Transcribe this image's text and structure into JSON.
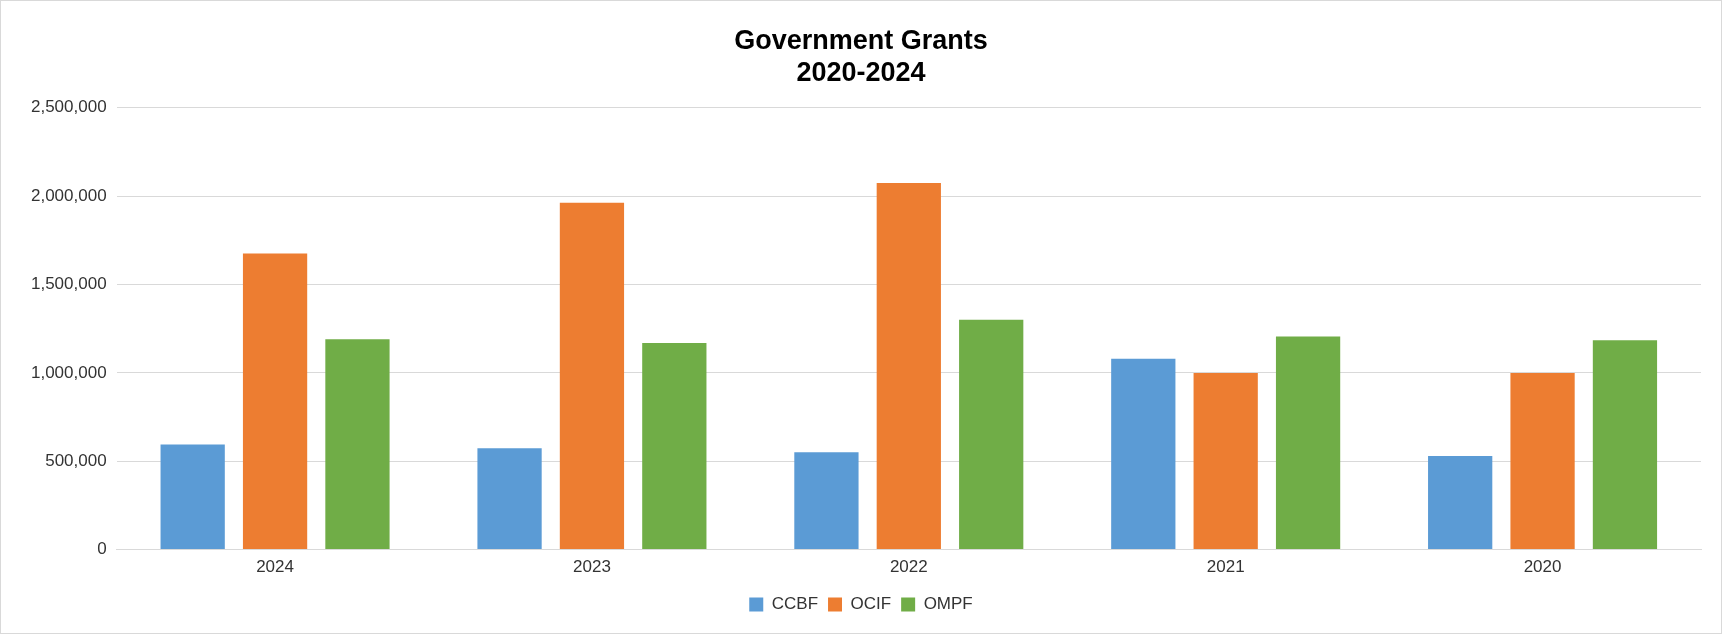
{
  "chart_data": {
    "type": "bar",
    "title": "Government Grants\n2020-2024",
    "categories": [
      "2024",
      "2023",
      "2022",
      "2021",
      "2020"
    ],
    "series": [
      {
        "name": "CCBF",
        "color": "#5b9bd5",
        "values": [
          595000,
          574000,
          551000,
          1080000,
          529000
        ]
      },
      {
        "name": "OCIF",
        "color": "#ed7d31",
        "values": [
          1676000,
          1963000,
          2074000,
          1000000,
          1000000
        ]
      },
      {
        "name": "OMPF",
        "color": "#70ad47",
        "values": [
          1191000,
          1169000,
          1301000,
          1206000,
          1184000
        ]
      }
    ],
    "ylim": [
      0,
      2500000
    ],
    "yticks": [
      {
        "value": 0,
        "label": "0"
      },
      {
        "value": 500000,
        "label": "500,000"
      },
      {
        "value": 1000000,
        "label": "1,000,000"
      },
      {
        "value": 1500000,
        "label": "1,500,000"
      },
      {
        "value": 2000000,
        "label": "2,000,000"
      },
      {
        "value": 2500000,
        "label": "2,500,000"
      }
    ],
    "grid": "y",
    "legend": "bottom"
  }
}
